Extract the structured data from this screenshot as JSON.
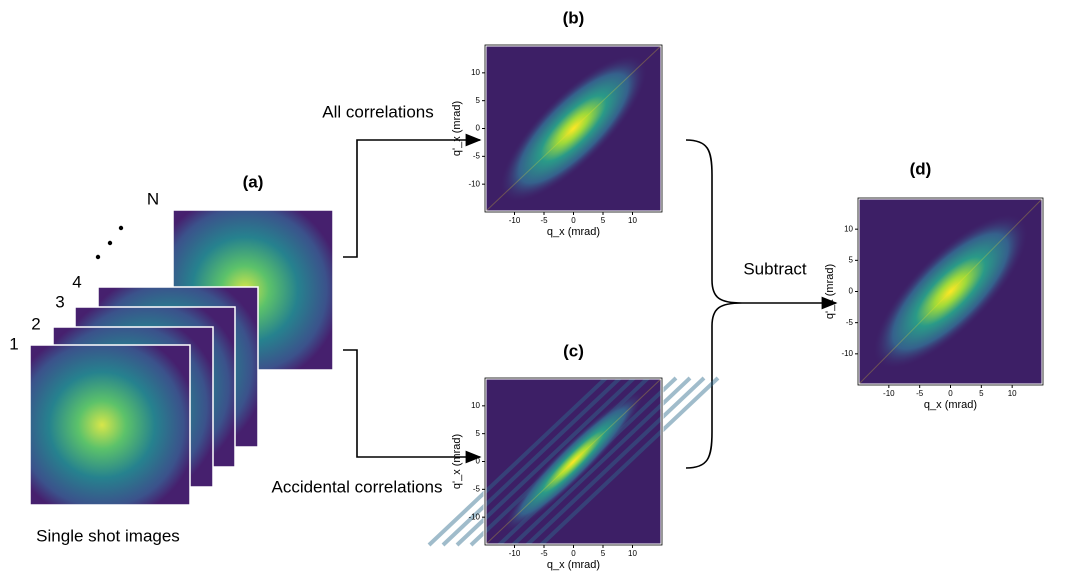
{
  "stack": {
    "shots": [
      "1",
      "2",
      "3",
      "4",
      "N"
    ],
    "label": "(a)",
    "caption": "Single shot images"
  },
  "arrows": {
    "upper": "All correlations",
    "lower": "Accidental correlations",
    "brace": "Subtract"
  },
  "plots": [
    {
      "label": "(b)",
      "xlabel": "q_x (mrad)",
      "ylabel": "q'_x (mrad)",
      "xticks": [
        -10,
        -5,
        0,
        5,
        10
      ],
      "yticks": [
        -10,
        -5,
        0,
        5,
        10
      ]
    },
    {
      "label": "(c)",
      "xlabel": "q_x (mrad)",
      "ylabel": "q'_x (mrad)",
      "xticks": [
        -10,
        -5,
        0,
        5,
        10
      ],
      "yticks": [
        -10,
        -5,
        0,
        5,
        10
      ]
    },
    {
      "label": "(d)",
      "xlabel": "q_x (mrad)",
      "ylabel": "q'_x (mrad)",
      "xticks": [
        -10,
        -5,
        0,
        5,
        10
      ],
      "yticks": [
        -10,
        -5,
        0,
        5,
        10
      ]
    }
  ]
}
